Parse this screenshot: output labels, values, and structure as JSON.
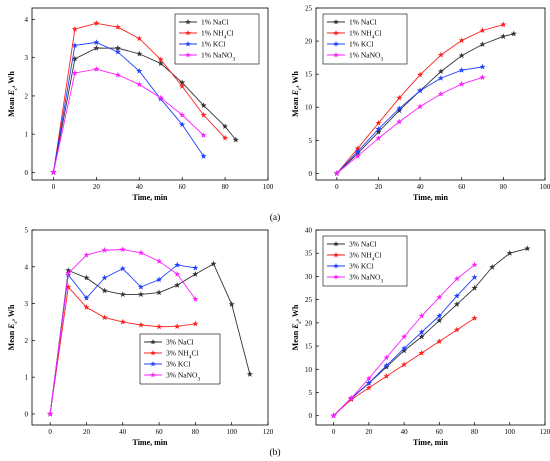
{
  "captions": [
    "(a)",
    "(b)"
  ],
  "chart_data": [
    {
      "type": "line",
      "xlabel": "Time, min",
      "ylabel": "Mean E_c, Wh",
      "xlim": [
        -10,
        100
      ],
      "ylim": [
        -0.2,
        4.3
      ],
      "xticks": [
        0,
        20,
        40,
        60,
        80,
        100
      ],
      "yticks": [
        0,
        1,
        2,
        3,
        4
      ],
      "legend_position": "top-right",
      "series": [
        {
          "name": "1% NaCl",
          "color": "#333333",
          "marker": "star",
          "x": [
            0,
            10,
            20,
            30,
            40,
            50,
            60,
            70,
            80,
            85
          ],
          "y": [
            0,
            2.97,
            3.25,
            3.25,
            3.1,
            2.85,
            2.35,
            1.75,
            1.2,
            0.85
          ]
        },
        {
          "name": "1% NH4Cl",
          "color": "#ff2020",
          "marker": "star",
          "x": [
            0,
            10,
            20,
            30,
            40,
            50,
            60,
            70,
            80
          ],
          "y": [
            0,
            3.75,
            3.9,
            3.8,
            3.5,
            2.95,
            2.25,
            1.5,
            0.9
          ]
        },
        {
          "name": "1% KCl",
          "color": "#2040ff",
          "marker": "star",
          "x": [
            0,
            10,
            20,
            30,
            40,
            50,
            60,
            70
          ],
          "y": [
            0,
            3.32,
            3.4,
            3.15,
            2.65,
            1.92,
            1.25,
            0.42
          ]
        },
        {
          "name": "1% NaNO3",
          "color": "#ff20ff",
          "marker": "star",
          "x": [
            0,
            10,
            20,
            30,
            40,
            50,
            60,
            70
          ],
          "y": [
            0,
            2.6,
            2.7,
            2.55,
            2.3,
            1.95,
            1.5,
            0.97
          ]
        }
      ]
    },
    {
      "type": "line",
      "xlabel": "Time, min",
      "ylabel": "Mean E_c, Wh",
      "xlim": [
        -10,
        100
      ],
      "ylim": [
        -1,
        25
      ],
      "xticks": [
        0,
        20,
        40,
        60,
        80,
        100
      ],
      "yticks": [
        0,
        5,
        10,
        15,
        20,
        25
      ],
      "legend_position": "top-left",
      "series": [
        {
          "name": "1% NaCl",
          "color": "#333333",
          "marker": "star",
          "x": [
            0,
            10,
            20,
            30,
            40,
            50,
            60,
            70,
            80,
            85
          ],
          "y": [
            0,
            3.0,
            6.25,
            9.5,
            12.5,
            15.4,
            17.8,
            19.5,
            20.7,
            21.1
          ]
        },
        {
          "name": "1% NH4Cl",
          "color": "#ff2020",
          "marker": "star",
          "x": [
            0,
            10,
            20,
            30,
            40,
            50,
            60,
            70,
            80
          ],
          "y": [
            0,
            3.75,
            7.6,
            11.4,
            14.9,
            17.9,
            20.1,
            21.6,
            22.5
          ]
        },
        {
          "name": "1% KCl",
          "color": "#2040ff",
          "marker": "star",
          "x": [
            0,
            10,
            20,
            30,
            40,
            50,
            60,
            70
          ],
          "y": [
            0,
            3.3,
            6.7,
            9.8,
            12.5,
            14.4,
            15.6,
            16.1
          ]
        },
        {
          "name": "1% NaNO3",
          "color": "#ff20ff",
          "marker": "star",
          "x": [
            0,
            10,
            20,
            30,
            40,
            50,
            60,
            70
          ],
          "y": [
            0,
            2.6,
            5.3,
            7.8,
            10.1,
            12.0,
            13.5,
            14.5
          ]
        }
      ]
    },
    {
      "type": "line",
      "xlabel": "Time, min",
      "ylabel": "Mean E_c, Wh",
      "xlim": [
        -10,
        120
      ],
      "ylim": [
        -0.3,
        5.0
      ],
      "xticks": [
        0,
        20,
        40,
        60,
        80,
        100,
        120
      ],
      "yticks": [
        0,
        1,
        2,
        3,
        4,
        5
      ],
      "legend_position": "bottom-center",
      "series": [
        {
          "name": "3% NaCl",
          "color": "#333333",
          "marker": "star",
          "x": [
            0,
            10,
            20,
            30,
            40,
            50,
            60,
            70,
            80,
            90,
            100,
            110
          ],
          "y": [
            0,
            3.9,
            3.7,
            3.35,
            3.25,
            3.25,
            3.3,
            3.5,
            3.8,
            4.08,
            2.98,
            1.08
          ]
        },
        {
          "name": "3% NH4Cl",
          "color": "#ff2020",
          "marker": "star",
          "x": [
            0,
            10,
            20,
            30,
            40,
            50,
            60,
            70,
            80
          ],
          "y": [
            0,
            3.45,
            2.9,
            2.62,
            2.5,
            2.42,
            2.37,
            2.38,
            2.45
          ]
        },
        {
          "name": "3% KCl",
          "color": "#2040ff",
          "marker": "star",
          "x": [
            0,
            10,
            20,
            30,
            40,
            50,
            60,
            70,
            80
          ],
          "y": [
            0,
            3.78,
            3.15,
            3.7,
            3.95,
            3.45,
            3.65,
            4.05,
            3.97
          ]
        },
        {
          "name": "3% NaNO3",
          "color": "#ff20ff",
          "marker": "star",
          "x": [
            0,
            10,
            20,
            30,
            40,
            50,
            60,
            70,
            80
          ],
          "y": [
            0,
            3.82,
            4.32,
            4.45,
            4.47,
            4.38,
            4.15,
            3.8,
            3.12
          ]
        }
      ]
    },
    {
      "type": "line",
      "xlabel": "Time, min",
      "ylabel": "Mean E_c, Wh",
      "xlim": [
        -10,
        120
      ],
      "ylim": [
        -2,
        40
      ],
      "xticks": [
        0,
        20,
        40,
        60,
        80,
        100,
        120
      ],
      "yticks": [
        0,
        5,
        10,
        15,
        20,
        25,
        30,
        35,
        40
      ],
      "legend_position": "top-left",
      "series": [
        {
          "name": "3% NaCl",
          "color": "#333333",
          "marker": "star",
          "x": [
            0,
            10,
            20,
            30,
            40,
            50,
            60,
            70,
            80,
            90,
            100,
            110
          ],
          "y": [
            0,
            3.7,
            7.0,
            10.5,
            14.0,
            17.0,
            20.5,
            24.0,
            27.5,
            32.0,
            35.0,
            36.0
          ]
        },
        {
          "name": "3% NH4Cl",
          "color": "#ff2020",
          "marker": "star",
          "x": [
            0,
            10,
            20,
            30,
            40,
            50,
            60,
            70,
            80
          ],
          "y": [
            0,
            3.5,
            6.0,
            8.5,
            11.0,
            13.5,
            16.0,
            18.5,
            21.0
          ]
        },
        {
          "name": "3% KCl",
          "color": "#2040ff",
          "marker": "star",
          "x": [
            0,
            10,
            20,
            30,
            40,
            50,
            60,
            70,
            80
          ],
          "y": [
            0,
            3.8,
            7.0,
            10.8,
            14.5,
            18.0,
            21.5,
            25.8,
            29.8
          ]
        },
        {
          "name": "3% NaNO3",
          "color": "#ff20ff",
          "marker": "star",
          "x": [
            0,
            10,
            20,
            30,
            40,
            50,
            60,
            70,
            80
          ],
          "y": [
            0,
            3.8,
            8.0,
            12.5,
            17.0,
            21.5,
            25.5,
            29.5,
            32.5
          ]
        }
      ]
    }
  ]
}
